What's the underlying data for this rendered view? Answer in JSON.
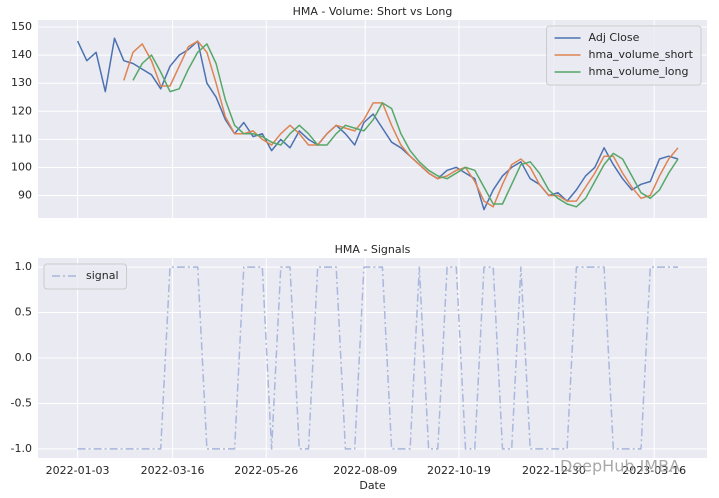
{
  "chart_data": [
    {
      "type": "line",
      "title": "HMA - Volume: Short vs Long",
      "x": [
        "2022-01-03",
        "2022-01-10",
        "2022-01-17",
        "2022-01-24",
        "2022-01-31",
        "2022-02-07",
        "2022-02-14",
        "2022-02-21",
        "2022-02-28",
        "2022-03-07",
        "2022-03-14",
        "2022-03-21",
        "2022-03-28",
        "2022-04-04",
        "2022-04-11",
        "2022-04-18",
        "2022-04-25",
        "2022-05-02",
        "2022-05-09",
        "2022-05-16",
        "2022-05-23",
        "2022-05-30",
        "2022-06-06",
        "2022-06-13",
        "2022-06-20",
        "2022-06-27",
        "2022-07-04",
        "2022-07-11",
        "2022-07-18",
        "2022-07-25",
        "2022-08-01",
        "2022-08-08",
        "2022-08-15",
        "2022-08-22",
        "2022-08-29",
        "2022-09-05",
        "2022-09-12",
        "2022-09-19",
        "2022-09-26",
        "2022-10-03",
        "2022-10-10",
        "2022-10-17",
        "2022-10-24",
        "2022-10-31",
        "2022-11-07",
        "2022-11-14",
        "2022-11-21",
        "2022-11-28",
        "2022-12-05",
        "2022-12-12",
        "2022-12-19",
        "2022-12-26",
        "2023-01-02",
        "2023-01-09",
        "2023-01-16",
        "2023-01-23",
        "2023-01-30",
        "2023-02-06",
        "2023-02-13",
        "2023-02-20",
        "2023-02-27",
        "2023-03-06",
        "2023-03-13",
        "2023-03-20",
        "2023-03-27",
        "2023-04-03"
      ],
      "series": [
        {
          "name": "Adj Close",
          "color": "#4c72b0",
          "values": [
            145,
            138,
            141,
            127,
            146,
            138,
            137,
            135,
            133,
            128,
            136,
            140,
            142,
            145,
            130,
            125,
            117,
            112,
            116,
            111,
            112,
            106,
            110,
            107,
            113,
            110,
            108,
            112,
            115,
            112,
            108,
            116,
            119,
            114,
            109,
            107,
            104,
            101,
            98,
            96,
            99,
            100,
            98,
            96,
            85,
            92,
            97,
            100,
            102,
            96,
            94,
            90,
            91,
            88,
            92,
            97,
            100,
            107,
            101,
            96,
            92,
            94,
            95,
            103,
            104,
            103
          ]
        },
        {
          "name": "hma_volume_short",
          "color": "#dd8452",
          "values": [
            null,
            null,
            null,
            null,
            null,
            131,
            141,
            144,
            138,
            129,
            129,
            136,
            143,
            145,
            141,
            130,
            118,
            112,
            112,
            113,
            110,
            108,
            112,
            115,
            112,
            108,
            108,
            112,
            115,
            114,
            113,
            117,
            123,
            123,
            115,
            108,
            104,
            101,
            98,
            96,
            97,
            99,
            100,
            95,
            88,
            86,
            94,
            101,
            103,
            100,
            94,
            90,
            90,
            88,
            88,
            93,
            98,
            104,
            104,
            98,
            93,
            89,
            90,
            97,
            103,
            107
          ]
        },
        {
          "name": "hma_volume_long",
          "color": "#55a868",
          "values": [
            null,
            null,
            null,
            null,
            null,
            null,
            131,
            137,
            140,
            134,
            127,
            128,
            135,
            141,
            144,
            137,
            124,
            115,
            112,
            112,
            111,
            109,
            108,
            112,
            115,
            112,
            108,
            108,
            112,
            115,
            114,
            113,
            117,
            123,
            121,
            112,
            106,
            102,
            99,
            97,
            96,
            98,
            100,
            99,
            93,
            87,
            87,
            94,
            101,
            102,
            98,
            92,
            89,
            87,
            86,
            89,
            95,
            101,
            105,
            103,
            97,
            91,
            89,
            92,
            98,
            103
          ]
        }
      ],
      "xlim": [
        "2021-12-04",
        "2023-04-25"
      ],
      "ylim": [
        82,
        152.5
      ],
      "yticks": [
        90,
        100,
        110,
        120,
        130,
        140,
        150
      ],
      "grid": true,
      "legend": "upper right"
    },
    {
      "type": "line",
      "title": "HMA - Signals",
      "xlabel": "Date",
      "x": [
        "2022-01-03",
        "2022-01-10",
        "2022-01-17",
        "2022-01-24",
        "2022-01-31",
        "2022-02-07",
        "2022-02-14",
        "2022-02-21",
        "2022-02-28",
        "2022-03-07",
        "2022-03-14",
        "2022-03-21",
        "2022-03-28",
        "2022-04-04",
        "2022-04-11",
        "2022-04-18",
        "2022-04-25",
        "2022-05-02",
        "2022-05-09",
        "2022-05-16",
        "2022-05-23",
        "2022-05-30",
        "2022-06-06",
        "2022-06-13",
        "2022-06-20",
        "2022-06-27",
        "2022-07-04",
        "2022-07-11",
        "2022-07-18",
        "2022-07-25",
        "2022-08-01",
        "2022-08-08",
        "2022-08-15",
        "2022-08-22",
        "2022-08-29",
        "2022-09-05",
        "2022-09-12",
        "2022-09-19",
        "2022-09-26",
        "2022-10-03",
        "2022-10-10",
        "2022-10-17",
        "2022-10-24",
        "2022-10-31",
        "2022-11-07",
        "2022-11-14",
        "2022-11-21",
        "2022-11-28",
        "2022-12-05",
        "2022-12-12",
        "2022-12-19",
        "2022-12-26",
        "2023-01-02",
        "2023-01-09",
        "2023-01-16",
        "2023-01-23",
        "2023-01-30",
        "2023-02-06",
        "2023-02-13",
        "2023-02-20",
        "2023-02-27",
        "2023-03-06",
        "2023-03-13",
        "2023-03-20",
        "2023-03-27",
        "2023-04-03"
      ],
      "series": [
        {
          "name": "signal",
          "color": "#a9b8dc",
          "linestyle": "dashdot",
          "values": [
            -1,
            -1,
            -1,
            -1,
            -1,
            -1,
            -1,
            -1,
            -1,
            -1,
            1,
            1,
            1,
            1,
            -1,
            -1,
            -1,
            -1,
            1,
            1,
            1,
            -1,
            1,
            1,
            -1,
            -1,
            1,
            1,
            1,
            -1,
            -1,
            1,
            1,
            1,
            -1,
            -1,
            -1,
            1,
            -1,
            -1,
            1,
            1,
            -1,
            -1,
            1,
            1,
            -1,
            -1,
            1,
            -1,
            -1,
            -1,
            -1,
            -1,
            1,
            1,
            1,
            1,
            -1,
            -1,
            -1,
            -1,
            1,
            1,
            1,
            1
          ]
        }
      ],
      "xlim": [
        "2021-12-04",
        "2023-04-25"
      ],
      "xticks": [
        "2022-01-03",
        "2022-03-16",
        "2022-05-26",
        "2022-08-09",
        "2022-10-19",
        "2022-12-30",
        "2023-03-16"
      ],
      "ylim": [
        -1.1,
        1.1
      ],
      "yticks": [
        {
          "value": -1,
          "label": "-1.0"
        },
        -0.5,
        {
          "value": 0,
          "label": "0.0"
        },
        0.5,
        {
          "value": 1,
          "label": "1.0"
        }
      ],
      "grid": true,
      "legend": "upper left"
    }
  ],
  "watermark": "DeepHub IMBA"
}
